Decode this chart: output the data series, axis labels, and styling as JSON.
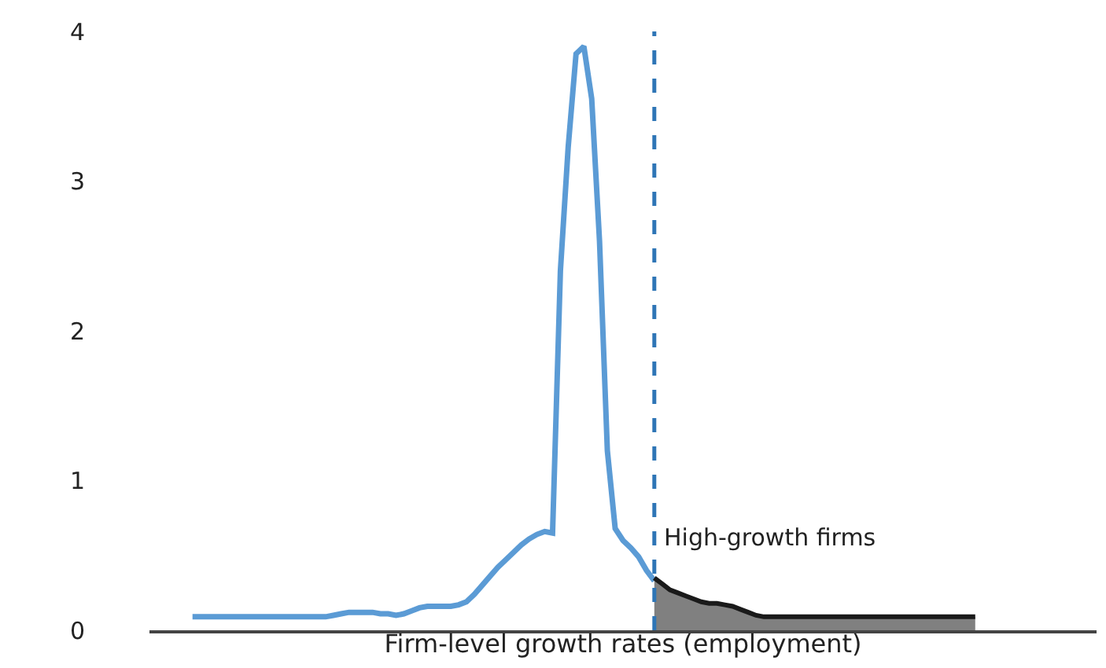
{
  "chart_data": {
    "type": "line",
    "xlabel": "Firm-level growth rates (employment)",
    "categories": [
      null,
      null,
      null,
      null,
      null,
      null,
      null,
      null,
      null,
      null,
      null,
      null,
      null,
      null,
      null,
      null,
      null,
      null,
      null,
      null,
      null,
      null,
      null,
      null,
      null,
      null,
      null,
      null,
      null,
      null,
      null,
      null,
      null,
      null,
      null,
      null,
      null,
      null,
      null,
      null,
      null,
      null,
      null,
      null,
      null,
      null,
      null,
      null,
      null,
      null,
      null,
      null,
      null,
      null,
      null,
      null,
      null,
      null,
      null,
      null,
      null,
      null,
      null,
      null,
      null,
      null,
      null,
      null,
      null,
      null,
      null,
      null,
      null,
      null,
      null,
      null,
      null,
      null,
      null,
      null,
      null,
      null,
      null,
      null,
      null,
      null,
      null,
      null,
      null,
      null,
      null,
      null,
      null,
      null,
      null,
      null,
      null,
      null,
      null,
      null,
      null,
      null,
      null,
      null,
      null,
      null,
      null,
      null,
      null,
      null,
      null,
      null,
      null,
      null,
      null,
      null,
      null,
      null,
      null,
      null,
      null
    ],
    "series": [
      {
        "color": "#5b9bd5",
        "values": [
          null,
          null,
          null,
          null,
          null,
          0.09,
          0.09,
          0.09,
          0.09,
          0.09,
          0.09,
          0.09,
          0.09,
          0.09,
          0.09,
          0.09,
          0.09,
          0.09,
          0.09,
          0.09,
          0.09,
          0.09,
          0.09,
          0.1,
          0.11,
          0.12,
          0.12,
          0.12,
          0.12,
          0.11,
          0.11,
          0.1,
          0.11,
          0.13,
          0.15,
          0.16,
          0.16,
          0.16,
          0.16,
          0.17,
          0.19,
          0.24,
          0.3,
          0.36,
          0.42,
          0.47,
          0.52,
          0.57,
          0.61,
          0.64,
          0.66,
          0.65,
          2.4,
          3.23,
          3.85,
          3.9,
          3.55,
          2.6,
          1.2,
          0.68,
          0.6,
          0.55,
          0.49,
          0.4,
          0.33,
          null,
          null,
          null,
          null,
          null,
          null,
          null,
          null,
          null,
          null,
          null,
          null,
          null,
          null,
          null,
          null,
          null,
          null,
          null,
          null,
          null,
          null,
          null,
          null,
          null,
          null,
          null,
          null,
          null,
          null,
          null,
          null,
          null,
          null,
          null,
          null,
          null,
          null,
          null,
          null,
          null,
          null,
          null,
          null,
          null,
          null,
          null,
          null,
          null,
          null,
          null,
          null,
          null,
          null,
          null,
          null
        ]
      },
      {
        "type": "area",
        "color": "#808080",
        "values": [
          null,
          null,
          null,
          null,
          null,
          null,
          null,
          null,
          null,
          null,
          null,
          null,
          null,
          null,
          null,
          null,
          null,
          null,
          null,
          null,
          null,
          null,
          null,
          null,
          null,
          null,
          null,
          null,
          null,
          null,
          null,
          null,
          null,
          null,
          null,
          null,
          null,
          null,
          null,
          null,
          null,
          null,
          null,
          null,
          null,
          null,
          null,
          null,
          null,
          null,
          null,
          null,
          null,
          null,
          null,
          null,
          null,
          null,
          null,
          null,
          null,
          null,
          null,
          null,
          0.35,
          0.31,
          0.27,
          0.25,
          0.23,
          0.21,
          0.19,
          0.18,
          0.18,
          0.17,
          0.16,
          0.14,
          0.12,
          0.1,
          0.09,
          0.09,
          0.09,
          0.09,
          0.09,
          0.09,
          0.09,
          0.09,
          0.09,
          0.09,
          0.09,
          0.09,
          0.09,
          0.09,
          0.09,
          0.09,
          0.09,
          0.09,
          0.09,
          0.09,
          0.09,
          0.09,
          0.09,
          0.09,
          0.09,
          0.09,
          0.09,
          0.09,
          null,
          null,
          null,
          null,
          null,
          null,
          null,
          null,
          null,
          null,
          null,
          null,
          null,
          null,
          null
        ]
      }
    ],
    "ylim": [
      0,
      4
    ],
    "yticks": [
      0,
      1,
      2,
      3,
      4
    ],
    "tick_labels": "y",
    "annotations": [
      "High-growth firms"
    ]
  }
}
